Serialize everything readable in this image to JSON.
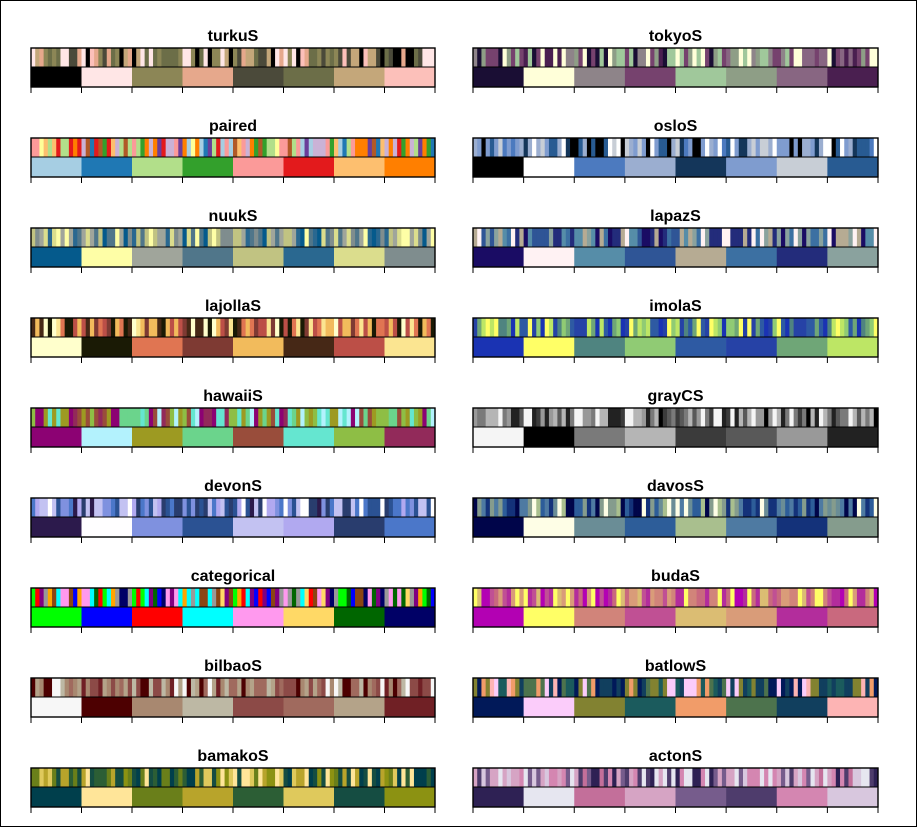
{
  "figure": {
    "background": "#ffffff",
    "border_color": "#000000"
  },
  "chart_data": [
    {
      "type": "bar",
      "title": "turkuS",
      "column": "left",
      "row": 0,
      "blend": [
        "#000000",
        "#ffe6e6",
        "#8c8656",
        "#e6a88c",
        "#4b4a3a",
        "#6c6e48",
        "#c4a77a",
        "#fcc0ba"
      ],
      "colors": [
        "#000000",
        "#ffe6e6",
        "#8c8656",
        "#e6a88c",
        "#4b4a3a",
        "#6c6e48",
        "#c4a77a",
        "#fcc0ba"
      ]
    },
    {
      "type": "bar",
      "title": "tokyoS",
      "column": "right",
      "row": 0,
      "blend": [
        "#1a0e34",
        "#ffffd9",
        "#8e8489",
        "#76426e",
        "#a0c89b",
        "#8e9e86",
        "#886682",
        "#4a1f50"
      ],
      "colors": [
        "#1a0e34",
        "#ffffd9",
        "#8e8489",
        "#76426e",
        "#a0c89b",
        "#8e9e86",
        "#886682",
        "#4a1f50"
      ]
    },
    {
      "type": "bar",
      "title": "paired",
      "column": "left",
      "row": 1,
      "blend": [
        "#a6cee3",
        "#1f78b4",
        "#b2df8a",
        "#33a02c",
        "#fb9a99",
        "#e31a1c",
        "#fdbf6f",
        "#ff7f00",
        "#cab2d6",
        "#6a3d9a",
        "#ffff99",
        "#b15928"
      ],
      "colors": [
        "#a6cee3",
        "#1f78b4",
        "#b2df8a",
        "#33a02c",
        "#fb9a99",
        "#e31a1c",
        "#fdbf6f",
        "#ff7f00"
      ]
    },
    {
      "type": "bar",
      "title": "osloS",
      "column": "right",
      "row": 1,
      "blend": [
        "#000000",
        "#ffffff",
        "#4c7abf",
        "#9baed0",
        "#14365a",
        "#7f9ccf",
        "#c8ced6",
        "#285b92"
      ],
      "colors": [
        "#000000",
        "#ffffff",
        "#4c7abf",
        "#9baed0",
        "#14365a",
        "#7f9ccf",
        "#c8ced6",
        "#285b92"
      ]
    },
    {
      "type": "bar",
      "title": "nuukS",
      "column": "left",
      "row": 2,
      "blend": [
        "#055a8c",
        "#fefea6",
        "#a0a59b",
        "#50768a",
        "#c1c382",
        "#2a6890",
        "#dbdd8d",
        "#7f8d8e"
      ],
      "colors": [
        "#055a8c",
        "#fefea6",
        "#a0a59b",
        "#50768a",
        "#c1c382",
        "#2a6890",
        "#dbdd8d",
        "#7f8d8e"
      ]
    },
    {
      "type": "bar",
      "title": "lapazS",
      "column": "right",
      "row": 2,
      "blend": [
        "#1a0c64",
        "#fff2f3",
        "#568da8",
        "#2f5596",
        "#b6ab93",
        "#3c70a2",
        "#232c7b",
        "#8aa29e"
      ],
      "colors": [
        "#1a0c64",
        "#fff2f3",
        "#568da8",
        "#2f5596",
        "#b6ab93",
        "#3c70a2",
        "#232c7b",
        "#8aa29e"
      ]
    },
    {
      "type": "bar",
      "title": "lajollaS",
      "column": "left",
      "row": 3,
      "blend": [
        "#ffffcc",
        "#1a1a05",
        "#e07552",
        "#7e3a33",
        "#f2bb5c",
        "#462816",
        "#bc4f47",
        "#fbe591"
      ],
      "colors": [
        "#ffffcc",
        "#1a1a05",
        "#e07552",
        "#7e3a33",
        "#f2bb5c",
        "#462816",
        "#bc4f47",
        "#fbe591"
      ]
    },
    {
      "type": "bar",
      "title": "imolaS",
      "column": "right",
      "row": 3,
      "blend": [
        "#1a33b3",
        "#ffff66",
        "#4f8480",
        "#90cb74",
        "#2e5aa3",
        "#2642a6",
        "#6fa677",
        "#bde665"
      ],
      "colors": [
        "#1a33b3",
        "#ffff66",
        "#4f8480",
        "#90cb74",
        "#2e5aa3",
        "#2642a6",
        "#6fa677",
        "#bde665"
      ]
    },
    {
      "type": "bar",
      "title": "hawaiiS",
      "column": "left",
      "row": 4,
      "blend": [
        "#8c0273",
        "#b3f2fd",
        "#9d9a22",
        "#6bd48c",
        "#994d3b",
        "#65e6d0",
        "#8ebe45",
        "#922a5a"
      ],
      "colors": [
        "#8c0273",
        "#b3f2fd",
        "#9d9a22",
        "#6bd48c",
        "#994d3b",
        "#65e6d0",
        "#8ebe45",
        "#922a5a"
      ]
    },
    {
      "type": "bar",
      "title": "grayCS",
      "column": "right",
      "row": 4,
      "blend": [
        "#f5f5f5",
        "#000000",
        "#7a7a7a",
        "#b5b5b5",
        "#3b3b3b",
        "#595959",
        "#999999",
        "#222222"
      ],
      "colors": [
        "#f5f5f5",
        "#000000",
        "#7a7a7a",
        "#b5b5b5",
        "#3b3b3b",
        "#595959",
        "#999999",
        "#222222"
      ]
    },
    {
      "type": "bar",
      "title": "devonS",
      "column": "left",
      "row": 5,
      "blend": [
        "#2c1a4c",
        "#fffeff",
        "#7f91df",
        "#2b5293",
        "#c3c2f2",
        "#b1a9f0",
        "#293d6e",
        "#4b77c9"
      ],
      "colors": [
        "#2c1a4c",
        "#fffeff",
        "#7f91df",
        "#2b5293",
        "#c3c2f2",
        "#b1a9f0",
        "#293d6e",
        "#4b77c9"
      ]
    },
    {
      "type": "bar",
      "title": "davosS",
      "column": "right",
      "row": 5,
      "blend": [
        "#00054a",
        "#fefee6",
        "#6a8d96",
        "#2d5d99",
        "#a9bf8e",
        "#4e7aa2",
        "#14327a",
        "#859c8d"
      ],
      "colors": [
        "#00054a",
        "#fefee6",
        "#6a8d96",
        "#2d5d99",
        "#a9bf8e",
        "#4e7aa2",
        "#14327a",
        "#859c8d"
      ]
    },
    {
      "type": "bar",
      "title": "categorical",
      "column": "left",
      "row": 6,
      "blend": [
        "#00ff00",
        "#0000ff",
        "#ff0000",
        "#00ffff",
        "#ff99ee",
        "#ffd966",
        "#006600",
        "#000066",
        "#ffa500",
        "#8b4513",
        "#999999",
        "#800080"
      ],
      "colors": [
        "#00ff00",
        "#0000ff",
        "#ff0000",
        "#00ffff",
        "#ff99ee",
        "#ffd966",
        "#006600",
        "#000066"
      ]
    },
    {
      "type": "bar",
      "title": "budaS",
      "column": "right",
      "row": 6,
      "blend": [
        "#b301b3",
        "#ffff66",
        "#d1847a",
        "#c05094",
        "#dbbd73",
        "#d99c79",
        "#b32d9c",
        "#c9697e"
      ],
      "colors": [
        "#b301b3",
        "#ffff66",
        "#d1847a",
        "#c05094",
        "#dbbd73",
        "#d99c79",
        "#b32d9c",
        "#c9697e"
      ]
    },
    {
      "type": "bar",
      "title": "bilbaoS",
      "column": "left",
      "row": 7,
      "blend": [
        "#f7f7f7",
        "#4d0001",
        "#a88870",
        "#bdb8a4",
        "#8c4a47",
        "#a06a5e",
        "#b4a389",
        "#702025"
      ],
      "colors": [
        "#f7f7f7",
        "#4d0001",
        "#a88870",
        "#bdb8a4",
        "#8c4a47",
        "#a06a5e",
        "#b4a389",
        "#702025"
      ]
    },
    {
      "type": "bar",
      "title": "batlowS",
      "column": "right",
      "row": 7,
      "blend": [
        "#011959",
        "#fbccfa",
        "#828231",
        "#1b5b5d",
        "#f19c69",
        "#4d734d",
        "#113f5e",
        "#fdb4b4"
      ],
      "colors": [
        "#011959",
        "#fbccfa",
        "#828231",
        "#1b5b5d",
        "#f19c69",
        "#4d734d",
        "#113f5e",
        "#fdb4b4"
      ]
    },
    {
      "type": "bar",
      "title": "bamakoS",
      "column": "left",
      "row": 8,
      "blend": [
        "#003f4c",
        "#ffe599",
        "#6a7f1a",
        "#b8a42b",
        "#2c5e35",
        "#dfc95c",
        "#154d42",
        "#8c9212"
      ],
      "colors": [
        "#003f4c",
        "#ffe599",
        "#6a7f1a",
        "#b8a42b",
        "#2c5e35",
        "#dfc95c",
        "#154d42",
        "#8c9212"
      ]
    },
    {
      "type": "bar",
      "title": "actonS",
      "column": "right",
      "row": 8,
      "blend": [
        "#2e2154",
        "#e6e6f0",
        "#c36f9a",
        "#d6a4c4",
        "#765c8c",
        "#4e3c6c",
        "#d486b1",
        "#d8c7de"
      ],
      "colors": [
        "#2e2154",
        "#e6e6f0",
        "#c36f9a",
        "#d6a4c4",
        "#765c8c",
        "#4e3c6c",
        "#d486b1",
        "#d8c7de"
      ]
    }
  ]
}
